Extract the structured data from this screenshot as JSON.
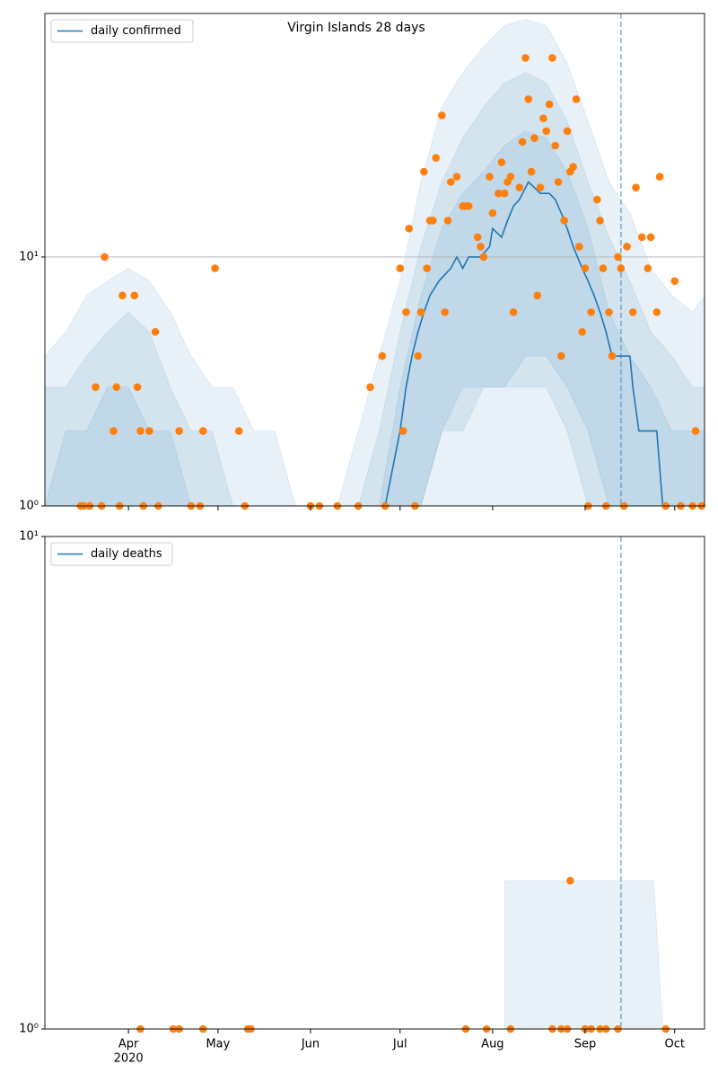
{
  "chart_data": [
    {
      "type": "line",
      "title": "Virgin Islands 28 days",
      "log_y": true,
      "grid": true,
      "xlim": [
        "2020-03-04",
        "2020-10-11"
      ],
      "xticks": [
        {
          "value": "2020-04-01",
          "label": "Apr"
        },
        {
          "value": "2020-05-01",
          "label": "May"
        },
        {
          "value": "2020-06-01",
          "label": "Jun"
        },
        {
          "value": "2020-07-01",
          "label": "Jul"
        },
        {
          "value": "2020-08-01",
          "label": "Aug"
        },
        {
          "value": "2020-09-01",
          "label": "Sep"
        },
        {
          "value": "2020-10-01",
          "label": "Oct"
        }
      ],
      "ylim": [
        1,
        95
      ],
      "yticks": [
        {
          "value": 1,
          "label": "10⁰"
        },
        {
          "value": 10,
          "label": "10¹"
        }
      ],
      "vline": "2020-09-13",
      "legend": "upper left",
      "series": [
        {
          "name": "daily confirmed",
          "color": "#1f77b4",
          "x": [
            "2020-06-26",
            "2020-07-01",
            "2020-07-03",
            "2020-07-05",
            "2020-07-07",
            "2020-07-09",
            "2020-07-11",
            "2020-07-14",
            "2020-07-18",
            "2020-07-20",
            "2020-07-22",
            "2020-07-24",
            "2020-07-28",
            "2020-07-31",
            "2020-08-01",
            "2020-08-04",
            "2020-08-06",
            "2020-08-08",
            "2020-08-10",
            "2020-08-13",
            "2020-08-15",
            "2020-08-17",
            "2020-08-20",
            "2020-08-22",
            "2020-08-24",
            "2020-08-26",
            "2020-08-28",
            "2020-08-31",
            "2020-09-02",
            "2020-09-04",
            "2020-09-06",
            "2020-09-08",
            "2020-09-10",
            "2020-09-12",
            "2020-09-16",
            "2020-09-17",
            "2020-09-19",
            "2020-09-25",
            "2020-09-27"
          ],
          "values": [
            1,
            2,
            3,
            4,
            5,
            6,
            7,
            8,
            9,
            10,
            9,
            10,
            10,
            11,
            13,
            12,
            14,
            16,
            17,
            20,
            19,
            18,
            18,
            17,
            15,
            13,
            11,
            9,
            8,
            7,
            6,
            5,
            4,
            4,
            4,
            3,
            2,
            2,
            1
          ]
        }
      ],
      "points": {
        "color": "#ff7f0e",
        "x": [
          "2020-03-16",
          "2020-03-17",
          "2020-03-19",
          "2020-03-21",
          "2020-03-23",
          "2020-03-24",
          "2020-03-27",
          "2020-03-28",
          "2020-03-29",
          "2020-03-30",
          "2020-04-03",
          "2020-04-04",
          "2020-04-05",
          "2020-04-06",
          "2020-04-08",
          "2020-04-10",
          "2020-04-11",
          "2020-04-18",
          "2020-04-22",
          "2020-04-25",
          "2020-04-26",
          "2020-04-30",
          "2020-05-08",
          "2020-05-10",
          "2020-06-01",
          "2020-06-04",
          "2020-06-10",
          "2020-06-17",
          "2020-06-21",
          "2020-06-25",
          "2020-06-26",
          "2020-07-01",
          "2020-07-02",
          "2020-07-03",
          "2020-07-04",
          "2020-07-06",
          "2020-07-07",
          "2020-07-08",
          "2020-07-09",
          "2020-07-10",
          "2020-07-11",
          "2020-07-12",
          "2020-07-13",
          "2020-07-15",
          "2020-07-16",
          "2020-07-17",
          "2020-07-18",
          "2020-07-20",
          "2020-07-22",
          "2020-07-23",
          "2020-07-24",
          "2020-07-27",
          "2020-07-28",
          "2020-07-29",
          "2020-07-31",
          "2020-08-01",
          "2020-08-03",
          "2020-08-04",
          "2020-08-05",
          "2020-08-06",
          "2020-08-07",
          "2020-08-08",
          "2020-08-10",
          "2020-08-11",
          "2020-08-12",
          "2020-08-13",
          "2020-08-14",
          "2020-08-15",
          "2020-08-16",
          "2020-08-17",
          "2020-08-18",
          "2020-08-19",
          "2020-08-20",
          "2020-08-21",
          "2020-08-22",
          "2020-08-23",
          "2020-08-24",
          "2020-08-25",
          "2020-08-26",
          "2020-08-27",
          "2020-08-28",
          "2020-08-29",
          "2020-08-30",
          "2020-08-31",
          "2020-09-01",
          "2020-09-02",
          "2020-09-03",
          "2020-09-05",
          "2020-09-06",
          "2020-09-07",
          "2020-09-08",
          "2020-09-09",
          "2020-09-10",
          "2020-09-12",
          "2020-09-13",
          "2020-09-14",
          "2020-09-15",
          "2020-09-17",
          "2020-09-18",
          "2020-09-20",
          "2020-09-22",
          "2020-09-23",
          "2020-09-25",
          "2020-09-26",
          "2020-09-28",
          "2020-10-01",
          "2020-10-03",
          "2020-10-07",
          "2020-10-08",
          "2020-10-10"
        ],
        "values": [
          1,
          1,
          1,
          3,
          1,
          10,
          2,
          3,
          1,
          7,
          7,
          3,
          2,
          1,
          2,
          5,
          1,
          2,
          1,
          1,
          2,
          9,
          2,
          1,
          1,
          1,
          1,
          1,
          3,
          4,
          1,
          9,
          2,
          6,
          13,
          1,
          4,
          6,
          22,
          9,
          14,
          14,
          25,
          37,
          6,
          14,
          20,
          21,
          16,
          16,
          16,
          12,
          11,
          10,
          21,
          15,
          18,
          24,
          18,
          20,
          21,
          6,
          19,
          29,
          63,
          43,
          22,
          30,
          7,
          19,
          36,
          32,
          41,
          63,
          28,
          20,
          4,
          14,
          32,
          22,
          23,
          43,
          11,
          5,
          9,
          1,
          6,
          17,
          14,
          9,
          1,
          6,
          4,
          10,
          9,
          1,
          11,
          6,
          19,
          12,
          9,
          12,
          6,
          21,
          1,
          8,
          1,
          1,
          2,
          1
        ]
      },
      "bands": [
        {
          "x": [
            "2020-03-04",
            "2020-03-11",
            "2020-03-18",
            "2020-03-25",
            "2020-04-01",
            "2020-04-08",
            "2020-04-15",
            "2020-04-22",
            "2020-04-29",
            "2020-05-06",
            "2020-05-13",
            "2020-05-20",
            "2020-05-27"
          ],
          "lower": [
            1,
            1,
            1,
            1,
            1,
            1,
            1,
            1,
            1,
            1,
            1,
            1,
            1
          ],
          "upper": [
            4,
            5,
            7,
            8,
            9,
            8,
            6,
            4,
            3,
            3,
            2,
            2,
            1
          ]
        },
        {
          "x": [
            "2020-03-04",
            "2020-03-11",
            "2020-03-18",
            "2020-03-25",
            "2020-04-01",
            "2020-04-08",
            "2020-04-15",
            "2020-04-22",
            "2020-04-29",
            "2020-05-06",
            "2020-05-13",
            "2020-05-20",
            "2020-05-27"
          ],
          "lower": [
            1,
            1,
            1,
            1,
            1,
            1,
            1,
            1,
            1,
            1,
            1,
            1,
            1
          ],
          "upper": [
            3,
            3,
            4,
            5,
            6,
            5,
            3,
            2,
            2,
            1,
            1,
            1,
            1
          ]
        },
        {
          "x": [
            "2020-03-04",
            "2020-03-11",
            "2020-03-18",
            "2020-03-25",
            "2020-04-01",
            "2020-04-08",
            "2020-04-15",
            "2020-04-22",
            "2020-04-29",
            "2020-05-06",
            "2020-05-13",
            "2020-05-20",
            "2020-05-27"
          ],
          "lower": [
            1,
            1,
            1,
            1,
            1,
            1,
            1,
            1,
            1,
            1,
            1,
            1,
            1
          ],
          "upper": [
            1,
            2,
            2,
            3,
            3,
            2,
            2,
            1,
            1,
            1,
            1,
            1,
            1
          ]
        },
        {
          "x": [
            "2020-06-10",
            "2020-06-17",
            "2020-06-24",
            "2020-07-01",
            "2020-07-08",
            "2020-07-15",
            "2020-07-22",
            "2020-07-29",
            "2020-08-05",
            "2020-08-12",
            "2020-08-19",
            "2020-08-26",
            "2020-09-02",
            "2020-09-09",
            "2020-09-16",
            "2020-09-23",
            "2020-09-30",
            "2020-10-07",
            "2020-10-11"
          ],
          "lower": [
            1,
            1,
            1,
            1,
            1,
            1,
            1,
            1,
            1,
            1,
            1,
            1,
            1,
            1,
            1,
            1,
            1,
            1,
            1
          ],
          "upper": [
            1,
            2,
            4,
            8,
            20,
            40,
            55,
            70,
            85,
            90,
            85,
            60,
            35,
            20,
            15,
            9,
            7,
            6,
            7
          ]
        },
        {
          "x": [
            "2020-06-10",
            "2020-06-17",
            "2020-06-24",
            "2020-07-01",
            "2020-07-08",
            "2020-07-15",
            "2020-07-22",
            "2020-07-29",
            "2020-08-05",
            "2020-08-12",
            "2020-08-19",
            "2020-08-26",
            "2020-09-02",
            "2020-09-09",
            "2020-09-16",
            "2020-09-23",
            "2020-09-30",
            "2020-10-07",
            "2020-10-11"
          ],
          "lower": [
            1,
            1,
            1,
            1,
            1,
            2,
            2,
            3,
            3,
            3,
            3,
            2,
            1,
            1,
            1,
            1,
            1,
            1,
            1
          ],
          "upper": [
            1,
            1,
            2,
            5,
            11,
            20,
            30,
            40,
            50,
            55,
            50,
            35,
            20,
            12,
            8,
            5,
            4,
            3,
            3
          ]
        },
        {
          "x": [
            "2020-06-10",
            "2020-06-17",
            "2020-06-24",
            "2020-07-01",
            "2020-07-08",
            "2020-07-15",
            "2020-07-22",
            "2020-07-29",
            "2020-08-05",
            "2020-08-12",
            "2020-08-19",
            "2020-08-26",
            "2020-09-02",
            "2020-09-09",
            "2020-09-16",
            "2020-09-23",
            "2020-09-30",
            "2020-10-07",
            "2020-10-11"
          ],
          "lower": [
            1,
            1,
            1,
            1,
            1,
            2,
            3,
            3,
            3,
            4,
            4,
            3,
            2,
            1,
            1,
            1,
            1,
            1,
            1
          ],
          "upper": [
            1,
            1,
            1,
            3,
            7,
            13,
            18,
            22,
            28,
            32,
            30,
            22,
            13,
            6,
            4,
            3,
            2,
            2,
            2
          ]
        }
      ]
    },
    {
      "type": "line",
      "log_y": true,
      "grid": true,
      "xlim": [
        "2020-03-04",
        "2020-10-11"
      ],
      "xticks": [
        {
          "value": "2020-04-01",
          "label": "Apr"
        },
        {
          "value": "2020-05-01",
          "label": "May"
        },
        {
          "value": "2020-06-01",
          "label": "Jun"
        },
        {
          "value": "2020-07-01",
          "label": "Jul"
        },
        {
          "value": "2020-08-01",
          "label": "Aug"
        },
        {
          "value": "2020-09-01",
          "label": "Sep"
        },
        {
          "value": "2020-10-01",
          "label": "Oct"
        }
      ],
      "year_label": "2020",
      "ylim": [
        1,
        10
      ],
      "yticks": [
        {
          "value": 1,
          "label": "10⁰"
        },
        {
          "value": 10,
          "label": "10¹"
        }
      ],
      "vline": "2020-09-13",
      "legend": "upper left",
      "series": [
        {
          "name": "daily deaths",
          "color": "#1f77b4"
        }
      ],
      "points": {
        "color": "#ff7f0e",
        "x": [
          "2020-04-05",
          "2020-04-16",
          "2020-04-18",
          "2020-04-26",
          "2020-05-11",
          "2020-05-12",
          "2020-07-23",
          "2020-07-30",
          "2020-08-07",
          "2020-08-21",
          "2020-08-24",
          "2020-08-26",
          "2020-08-27",
          "2020-09-01",
          "2020-09-03",
          "2020-09-06",
          "2020-09-08",
          "2020-09-12",
          "2020-09-28"
        ],
        "values": [
          1,
          1,
          1,
          1,
          1,
          1,
          1,
          1,
          1,
          1,
          1,
          1,
          2,
          1,
          1,
          1,
          1,
          1,
          1
        ]
      },
      "bands": [
        {
          "x": [
            "2020-08-05",
            "2020-08-08",
            "2020-09-24",
            "2020-09-27"
          ],
          "lower": [
            1,
            1,
            1,
            1
          ],
          "upper": [
            2,
            2,
            2,
            1
          ]
        }
      ]
    }
  ]
}
